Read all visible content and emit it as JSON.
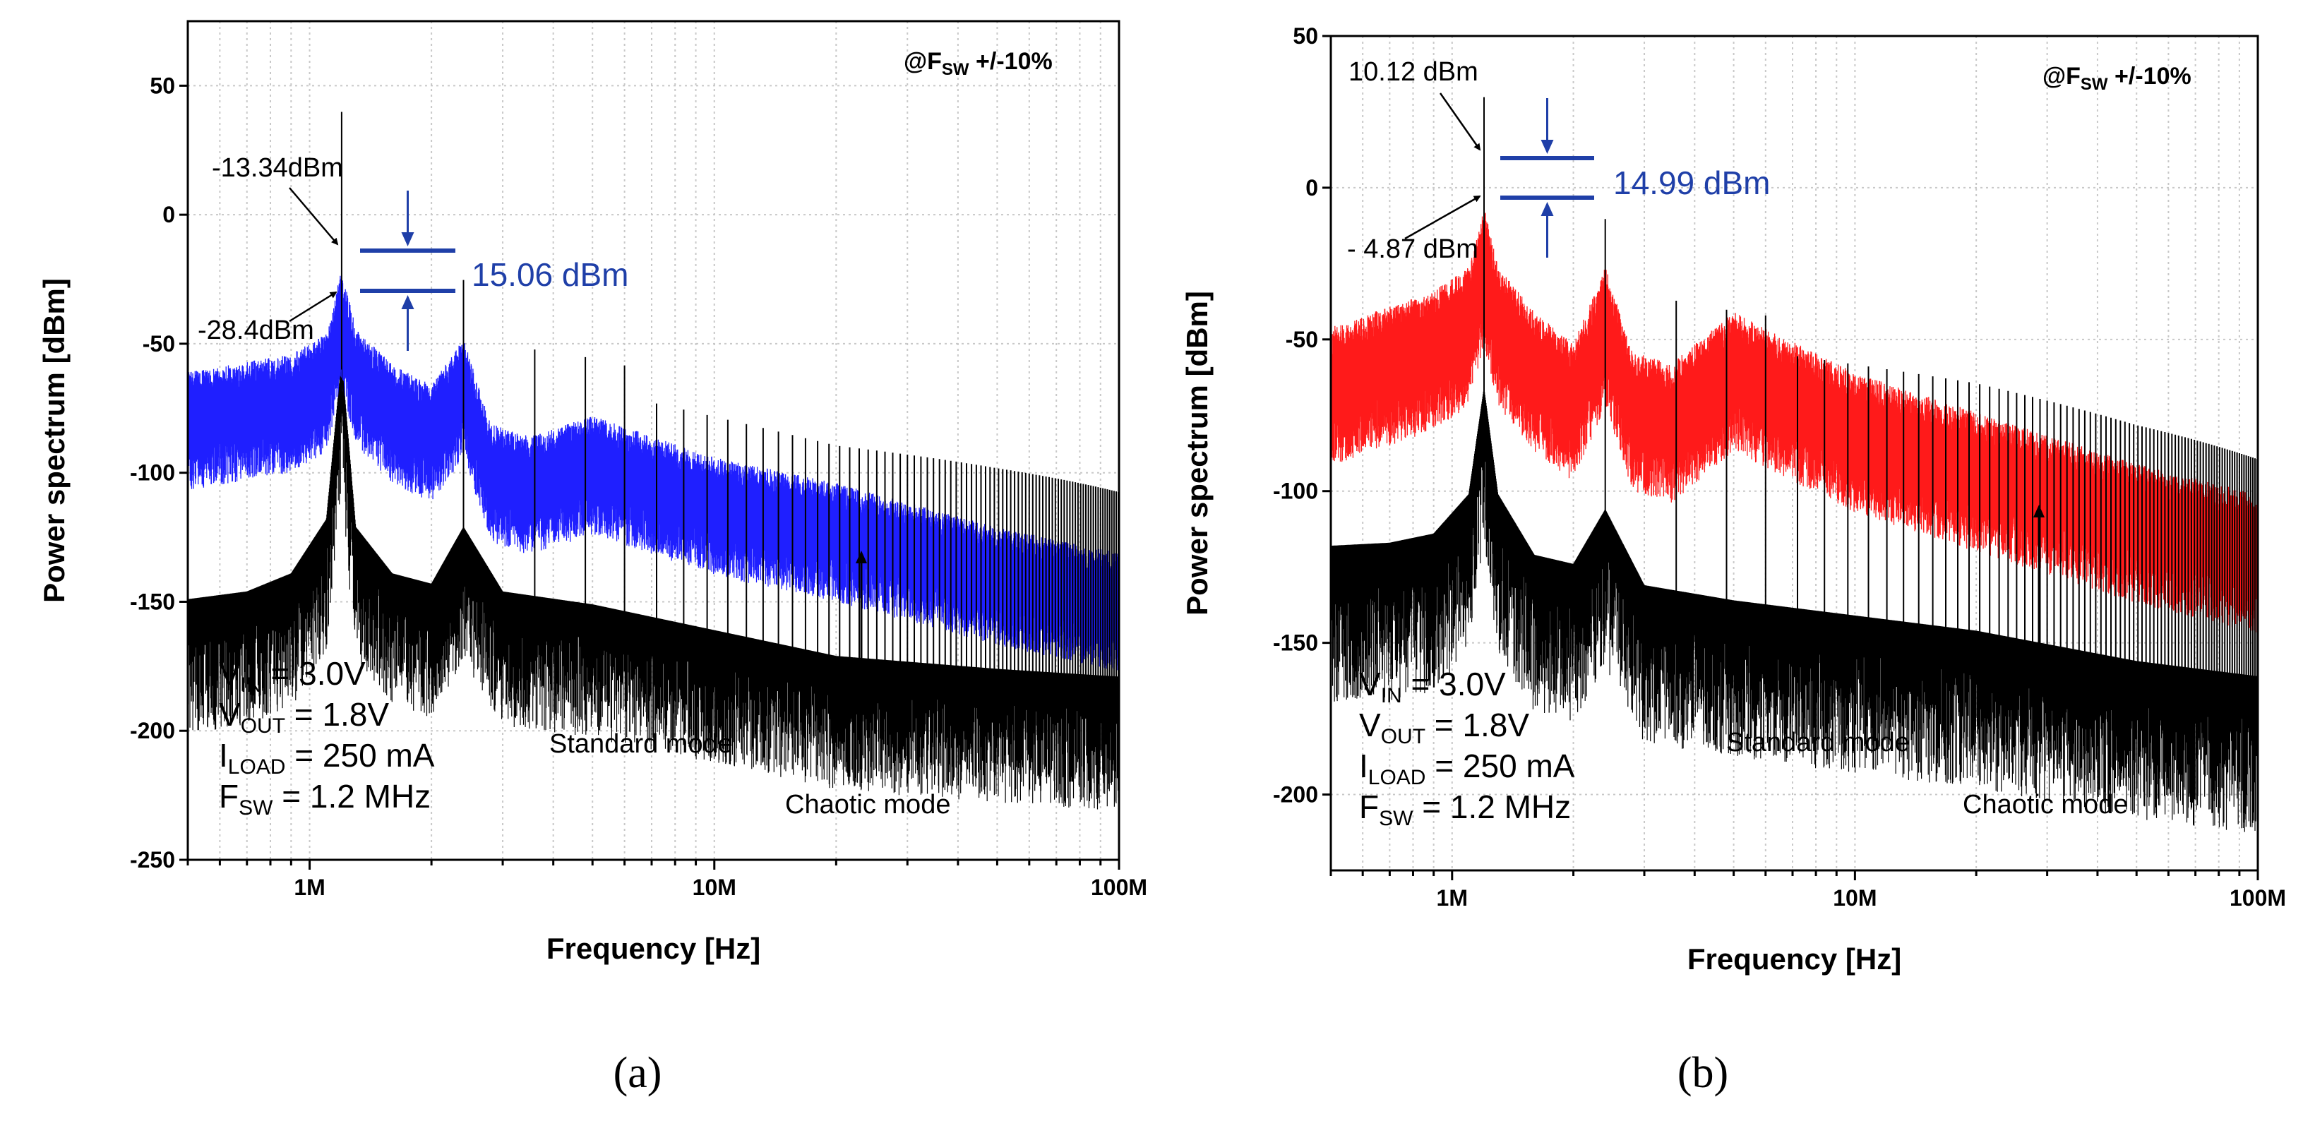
{
  "chart_data": [
    {
      "id": "a",
      "type": "line",
      "panel_label": "(a)",
      "xlabel": "Frequency [Hz]",
      "ylabel": "Power spectrum [dBm]",
      "xscale": "log",
      "xlim": [
        500000,
        100000000
      ],
      "ylim": [
        -250,
        75
      ],
      "yticks": [
        50,
        0,
        -50,
        -100,
        -150,
        -200,
        -250
      ],
      "ytick_labels": [
        "50",
        "0",
        "-50",
        "-100",
        "-150",
        "-200",
        "-250"
      ],
      "xticks": [
        1000000,
        10000000,
        100000000
      ],
      "xtick_labels": [
        "1M",
        "10M",
        "100M"
      ],
      "corner_label": {
        "prefix": "@F",
        "sub": "SW",
        "suffix": " +/-10%"
      },
      "series": [
        {
          "name": "Standard mode",
          "color": "#000000",
          "x": [
            500000,
            700000,
            900000,
            1100000,
            1200000,
            1300000,
            1600000,
            2000000,
            2400000,
            3000000,
            5000000,
            10000000,
            20000000,
            50000000,
            100000000
          ],
          "y": [
            -153,
            -150,
            -143,
            -122,
            -60,
            -125,
            -143,
            -147,
            -125,
            -150,
            -155,
            -165,
            -175,
            -180,
            -183
          ]
        },
        {
          "name": "Chaotic mode",
          "color": "#1f1fff",
          "x": [
            500000,
            900000,
            1100000,
            1200000,
            1300000,
            1600000,
            2000000,
            2400000,
            2800000,
            3500000,
            5000000,
            10000000,
            20000000,
            50000000,
            100000000
          ],
          "y": [
            -75,
            -68,
            -60,
            -35,
            -58,
            -72,
            -80,
            -62,
            -95,
            -100,
            -92,
            -108,
            -118,
            -135,
            -145
          ]
        }
      ],
      "peak_top_label": "-13.34dBm",
      "peak_low_label": "-28.4dBm",
      "delta_label": "15.06 dBm",
      "delta_color": "#1f3fa8",
      "conditions": [
        {
          "main": "V",
          "sub": "IN",
          "rest": " = 3.0V"
        },
        {
          "main": "V",
          "sub": "OUT",
          "rest": " = 1.8V"
        },
        {
          "main": "I",
          "sub": "LOAD",
          "rest": " = 250 mA"
        },
        {
          "main": "F",
          "sub": "SW",
          "rest": " = 1.2 MHz"
        }
      ],
      "standard_label": "Standard mode",
      "chaotic_label": "Chaotic mode"
    },
    {
      "id": "b",
      "type": "line",
      "panel_label": "(b)",
      "xlabel": "Frequency [Hz]",
      "ylabel": "Power spectrum [dBm]",
      "xscale": "log",
      "xlim": [
        500000,
        100000000
      ],
      "ylim": [
        -225,
        50
      ],
      "yticks": [
        50,
        0,
        -50,
        -100,
        -150,
        -200
      ],
      "ytick_labels": [
        "50",
        "0",
        "-50",
        "-100",
        "-150",
        "-200"
      ],
      "xticks": [
        1000000,
        10000000,
        100000000
      ],
      "xtick_labels": [
        "1M",
        "10M",
        "100M"
      ],
      "corner_label": {
        "prefix": "@F",
        "sub": "SW",
        "suffix": " +/-10%"
      },
      "series": [
        {
          "name": "Standard mode",
          "color": "#000000",
          "x": [
            500000,
            700000,
            900000,
            1100000,
            1200000,
            1300000,
            1600000,
            2000000,
            2400000,
            3000000,
            5000000,
            10000000,
            20000000,
            50000000,
            100000000
          ],
          "y": [
            -122,
            -121,
            -118,
            -105,
            -70,
            -105,
            -125,
            -128,
            -110,
            -135,
            -140,
            -145,
            -150,
            -160,
            -165
          ]
        },
        {
          "name": "Chaotic mode",
          "color": "#ff1a1a",
          "x": [
            500000,
            900000,
            1100000,
            1200000,
            1300000,
            1600000,
            2000000,
            2400000,
            2800000,
            3500000,
            5000000,
            10000000,
            20000000,
            50000000,
            100000000
          ],
          "y": [
            -60,
            -48,
            -40,
            -20,
            -40,
            -55,
            -65,
            -40,
            -68,
            -72,
            -55,
            -75,
            -88,
            -105,
            -115
          ]
        }
      ],
      "peak_top_label": "10.12 dBm",
      "peak_low_label": "- 4.87 dBm",
      "delta_label": "14.99 dBm",
      "delta_color": "#1f3fa8",
      "conditions": [
        {
          "main": "V",
          "sub": "IN",
          "rest": " = 3.0V"
        },
        {
          "main": "V",
          "sub": "OUT",
          "rest": " = 1.8V"
        },
        {
          "main": "I",
          "sub": "LOAD",
          "rest": " = 250 mA"
        },
        {
          "main": "F",
          "sub": "SW",
          "rest": " = 1.2 MHz"
        }
      ],
      "standard_label": "Standard mode",
      "chaotic_label": "Chaotic mode"
    }
  ]
}
